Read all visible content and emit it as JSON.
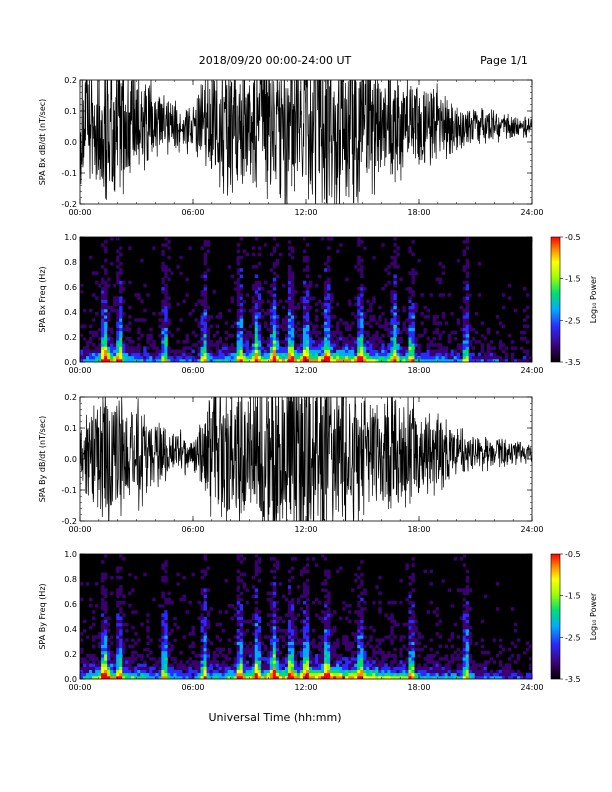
{
  "header": {
    "title": "2018/09/20   00:00-24:00 UT",
    "page": "Page 1/1"
  },
  "footer": {
    "xaxis_label": "Universal Time (hh:mm)"
  },
  "colors": {
    "trace": "#000000",
    "spectrogram_background": "#000000",
    "colormap": [
      "#000000",
      "#3a0070",
      "#2a2aff",
      "#00aaff",
      "#00e070",
      "#a0ff00",
      "#ffff00",
      "#ff8800",
      "#ff0000"
    ]
  },
  "chart_data": [
    {
      "type": "line",
      "name": "bx-dbdt-panel",
      "ylabel": "SPA Bx dB/dt (nT/sec)",
      "xlim": [
        0,
        24
      ],
      "ylim": [
        -0.2,
        0.2
      ],
      "yticks": [
        "-0.2",
        "-0.1",
        "0.0",
        "0.1",
        "0.2"
      ],
      "xticks": [
        "00:00",
        "06:00",
        "12:00",
        "18:00",
        "24:00"
      ],
      "center": 0.05,
      "envelope_hours": [
        0,
        1,
        1.5,
        2,
        3,
        4,
        5,
        6,
        6.5,
        7,
        8,
        9,
        10,
        11,
        12,
        13,
        14,
        15,
        16,
        17,
        18,
        19,
        20,
        21,
        22,
        23,
        24
      ],
      "envelope_amplitude": [
        0.2,
        0.22,
        0.25,
        0.22,
        0.2,
        0.12,
        0.09,
        0.08,
        0.14,
        0.2,
        0.22,
        0.24,
        0.26,
        0.28,
        0.3,
        0.3,
        0.28,
        0.26,
        0.2,
        0.18,
        0.14,
        0.12,
        0.08,
        0.07,
        0.05,
        0.04,
        0.03
      ],
      "grid": false
    },
    {
      "type": "heatmap",
      "name": "bx-spectrogram-panel",
      "ylabel": "SPA Bx Freq (Hz)",
      "xlim": [
        0,
        24
      ],
      "ylim": [
        0,
        1
      ],
      "yticks": [
        "0.0",
        "0.2",
        "0.4",
        "0.6",
        "0.8",
        "1.0"
      ],
      "xticks": [
        "00:00",
        "06:00",
        "12:00",
        "18:00",
        "24:00"
      ],
      "colorbar": {
        "label": "Log₁₀ Power",
        "range": [
          -3.5,
          -0.5
        ],
        "ticks": [
          "-0.5",
          "-1.5",
          "-2.5",
          "-3.5"
        ]
      },
      "bursts_hours": [
        1.3,
        2.1,
        4.5,
        6.6,
        8.5,
        9.4,
        10.3,
        11.2,
        12.0,
        13.1,
        14.9,
        16.7,
        17.6,
        20.5
      ],
      "activity_hours": [
        0,
        1,
        1.4,
        2,
        4,
        6,
        8,
        9,
        10,
        11,
        12,
        13,
        14,
        15,
        16,
        17,
        18,
        19,
        20,
        21,
        22,
        23,
        24
      ],
      "activity_level": [
        0.35,
        0.5,
        1.0,
        0.55,
        0.35,
        0.3,
        0.5,
        0.6,
        0.65,
        0.7,
        0.75,
        0.8,
        0.78,
        0.75,
        0.6,
        0.55,
        0.45,
        0.4,
        0.35,
        0.3,
        0.25,
        0.2,
        0.2
      ]
    },
    {
      "type": "line",
      "name": "by-dbdt-panel",
      "ylabel": "SPA By dB/dt (nT/sec)",
      "xlim": [
        0,
        24
      ],
      "ylim": [
        -0.2,
        0.2
      ],
      "yticks": [
        "-0.2",
        "-0.1",
        "0.0",
        "0.1",
        "0.2"
      ],
      "xticks": [
        "00:00",
        "06:00",
        "12:00",
        "18:00",
        "24:00"
      ],
      "center": 0.02,
      "envelope_hours": [
        0,
        1,
        1.5,
        2,
        3,
        4,
        5,
        6,
        6.5,
        7,
        8,
        9,
        10,
        11,
        12,
        13,
        14,
        15,
        16,
        17,
        18,
        19,
        20,
        21,
        22,
        23,
        24
      ],
      "envelope_amplitude": [
        0.12,
        0.2,
        0.24,
        0.2,
        0.18,
        0.1,
        0.07,
        0.06,
        0.12,
        0.2,
        0.24,
        0.26,
        0.28,
        0.3,
        0.3,
        0.28,
        0.26,
        0.22,
        0.2,
        0.18,
        0.15,
        0.12,
        0.08,
        0.06,
        0.05,
        0.04,
        0.03
      ],
      "grid": false
    },
    {
      "type": "heatmap",
      "name": "by-spectrogram-panel",
      "ylabel": "SPA By Freq (Hz)",
      "xlim": [
        0,
        24
      ],
      "ylim": [
        0,
        1
      ],
      "yticks": [
        "0.0",
        "0.2",
        "0.4",
        "0.6",
        "0.8",
        "1.0"
      ],
      "xticks": [
        "00:00",
        "06:00",
        "12:00",
        "18:00",
        "24:00"
      ],
      "colorbar": {
        "label": "Log₁₀ Power",
        "range": [
          -3.5,
          -0.5
        ],
        "ticks": [
          "-0.5",
          "-1.5",
          "-2.5",
          "-3.5"
        ]
      },
      "bursts_hours": [
        1.3,
        2.1,
        4.5,
        6.6,
        8.5,
        9.4,
        10.3,
        11.2,
        12.0,
        13.1,
        14.9,
        17.6,
        20.5
      ],
      "activity_hours": [
        0,
        1,
        1.4,
        2,
        4,
        6,
        8,
        9,
        10,
        11,
        12,
        13,
        14,
        15,
        16,
        17,
        18,
        19,
        20,
        21,
        22,
        23,
        24
      ],
      "activity_level": [
        0.4,
        0.6,
        1.0,
        0.6,
        0.4,
        0.35,
        0.55,
        0.65,
        0.7,
        0.75,
        0.8,
        0.85,
        0.8,
        0.78,
        0.65,
        0.55,
        0.5,
        0.45,
        0.4,
        0.35,
        0.3,
        0.25,
        0.25
      ]
    }
  ]
}
